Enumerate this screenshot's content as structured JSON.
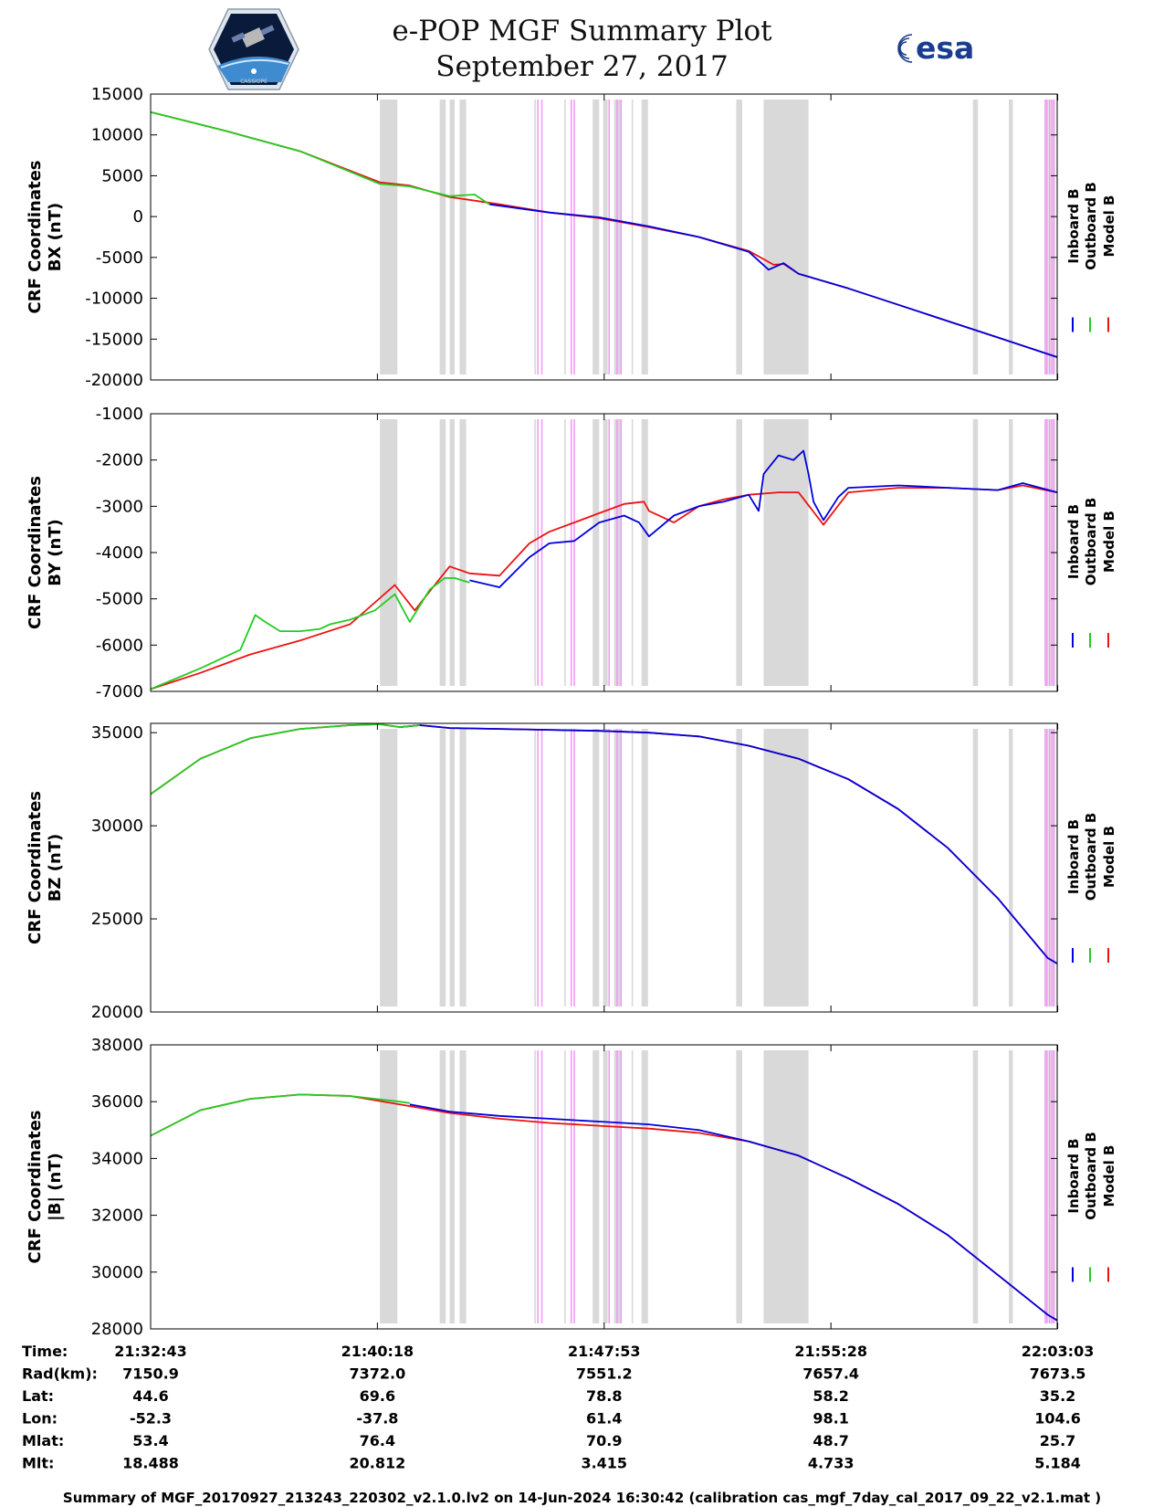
{
  "header": {
    "title": "e-POP MGF Summary Plot",
    "subtitle": "September 27, 2017",
    "logo_left_text": "CASSIOPE",
    "logo_right_text": "esa"
  },
  "colors": {
    "inboard": "#0000dd",
    "outboard": "#22cc22",
    "model": "#ee1111",
    "gap_shade": "#d9d9d9",
    "event_line": "#f29cf2"
  },
  "chart_data": {
    "type": "line",
    "x_range": [
      0,
      1819
    ],
    "x_units": "seconds since 21:32:43",
    "gray_bands": [
      [
        460,
        495
      ],
      [
        580,
        592
      ],
      [
        600,
        610
      ],
      [
        620,
        633
      ],
      [
        770,
        773
      ],
      [
        830,
        833
      ],
      [
        887,
        900
      ],
      [
        908,
        917
      ],
      [
        930,
        945
      ],
      [
        965,
        968
      ],
      [
        985,
        998
      ],
      [
        1175,
        1187
      ],
      [
        1230,
        1320
      ],
      [
        1650,
        1660
      ],
      [
        1722,
        1730
      ],
      [
        1798,
        1802
      ],
      [
        1810,
        1815
      ]
    ],
    "magenta_lines": [
      777,
      785,
      844,
      850,
      920,
      936,
      944,
      1795,
      1798,
      1804,
      1808,
      1812
    ],
    "legend": [
      "Inboard B",
      "Outboard B",
      "Model B"
    ],
    "panels": [
      {
        "id": "bx",
        "ylabel_line1": "CRF Coordinates",
        "ylabel_line2": "BX (nT)",
        "ylim": [
          -20000,
          15000
        ],
        "yticks": [
          "15000",
          "10000",
          "5000",
          "0",
          "-5000",
          "-10000",
          "-15000",
          "-20000"
        ],
        "yticks_values": [
          15000,
          10000,
          5000,
          0,
          -5000,
          -10000,
          -15000,
          -20000
        ],
        "series": [
          {
            "name": "Model B",
            "key": "model",
            "x": [
              0,
              150,
              300,
              460,
              520,
              600,
              700,
              800,
              900,
              1000,
              1100,
              1200,
              1250,
              1270,
              1300,
              1400,
              1500,
              1600,
              1700,
              1819
            ],
            "values": [
              12800,
              10500,
              8000,
              4200,
              3800,
              2400,
              1500,
              500,
              -200,
              -1300,
              -2500,
              -4200,
              -5900,
              -5800,
              -7000,
              -8800,
              -10800,
              -12800,
              -14800,
              -17200
            ]
          },
          {
            "name": "Inboard B",
            "key": "inboard",
            "x": [
              680,
              800,
              900,
              1000,
              1100,
              1200,
              1240,
              1270,
              1300,
              1400,
              1500,
              1600,
              1700,
              1819
            ],
            "values": [
              1500,
              500,
              -100,
              -1200,
              -2500,
              -4300,
              -6500,
              -5700,
              -7000,
              -8800,
              -10800,
              -12800,
              -14800,
              -17200
            ]
          },
          {
            "name": "Outboard B",
            "key": "outboard",
            "x": [
              0,
              150,
              300,
              460,
              520,
              600,
              650,
              680
            ],
            "values": [
              12800,
              10500,
              8000,
              4000,
              3700,
              2500,
              2700,
              1500
            ]
          }
        ]
      },
      {
        "id": "by",
        "ylabel_line1": "CRF Coordinates",
        "ylabel_line2": "BY (nT)",
        "ylim": [
          -7000,
          -1000
        ],
        "yticks": [
          "-1000",
          "-2000",
          "-3000",
          "-4000",
          "-5000",
          "-6000",
          "-7000"
        ],
        "yticks_values": [
          -1000,
          -2000,
          -3000,
          -4000,
          -5000,
          -6000,
          -7000
        ],
        "series": [
          {
            "name": "Model B",
            "key": "model",
            "x": [
              0,
              100,
              200,
              300,
              400,
              490,
              530,
              570,
              600,
              640,
              700,
              760,
              800,
              850,
              900,
              950,
              990,
              1000,
              1050,
              1100,
              1150,
              1200,
              1260,
              1300,
              1350,
              1400,
              1500,
              1600,
              1700,
              1750,
              1819
            ],
            "values": [
              -6950,
              -6600,
              -6200,
              -5900,
              -5550,
              -4700,
              -5250,
              -4700,
              -4300,
              -4450,
              -4500,
              -3800,
              -3550,
              -3350,
              -3150,
              -2950,
              -2900,
              -3100,
              -3350,
              -3000,
              -2850,
              -2750,
              -2700,
              -2700,
              -3400,
              -2700,
              -2600,
              -2600,
              -2650,
              -2550,
              -2700
            ]
          },
          {
            "name": "Inboard B",
            "key": "inboard",
            "x": [
              640,
              700,
              760,
              800,
              850,
              900,
              950,
              980,
              1000,
              1050,
              1100,
              1150,
              1200,
              1220,
              1230,
              1260,
              1290,
              1310,
              1320,
              1330,
              1350,
              1380,
              1400,
              1500,
              1600,
              1700,
              1750,
              1819
            ],
            "values": [
              -4600,
              -4750,
              -4100,
              -3800,
              -3750,
              -3350,
              -3200,
              -3350,
              -3650,
              -3200,
              -3000,
              -2900,
              -2750,
              -3100,
              -2300,
              -1900,
              -2000,
              -1800,
              -2300,
              -2900,
              -3300,
              -2800,
              -2600,
              -2550,
              -2600,
              -2650,
              -2500,
              -2700
            ]
          },
          {
            "name": "Outboard B",
            "key": "outboard",
            "x": [
              0,
              100,
              180,
              210,
              230,
              260,
              300,
              340,
              360,
              400,
              450,
              490,
              520,
              560,
              590,
              610,
              640
            ],
            "values": [
              -6950,
              -6500,
              -6100,
              -5350,
              -5500,
              -5700,
              -5700,
              -5650,
              -5550,
              -5450,
              -5250,
              -4900,
              -5500,
              -4800,
              -4550,
              -4550,
              -4650
            ]
          }
        ]
      },
      {
        "id": "bz",
        "ylabel_line1": "CRF Coordinates",
        "ylabel_line2": "BZ (nT)",
        "ylim": [
          20000,
          35500
        ],
        "yticks": [
          "35000",
          "30000",
          "25000",
          "20000"
        ],
        "yticks_values": [
          35000,
          30000,
          25000,
          20000
        ],
        "series": [
          {
            "name": "Model B",
            "key": "model",
            "x": [
              0,
              100,
              200,
              300,
              400,
              460,
              500,
              540,
              600,
              700,
              800,
              900,
              1000,
              1100,
              1200,
              1300,
              1400,
              1500,
              1600,
              1700,
              1800,
              1819
            ],
            "values": [
              31700,
              33600,
              34700,
              35200,
              35400,
              35450,
              35300,
              35400,
              35250,
              35200,
              35150,
              35100,
              35000,
              34800,
              34300,
              33600,
              32500,
              30900,
              28800,
              26100,
              22900,
              22600
            ]
          },
          {
            "name": "Inboard B",
            "key": "inboard",
            "x": [
              500,
              540,
              600,
              700,
              800,
              900,
              1000,
              1100,
              1200,
              1300,
              1400,
              1500,
              1600,
              1700,
              1800,
              1819
            ],
            "values": [
              35300,
              35400,
              35250,
              35200,
              35150,
              35100,
              35000,
              34800,
              34300,
              33600,
              32500,
              30900,
              28800,
              26100,
              22900,
              22600
            ]
          },
          {
            "name": "Outboard B",
            "key": "outboard",
            "x": [
              0,
              100,
              200,
              300,
              400,
              460,
              500,
              540
            ],
            "values": [
              31700,
              33600,
              34700,
              35200,
              35400,
              35450,
              35300,
              35400
            ]
          }
        ]
      },
      {
        "id": "bt",
        "ylabel_line1": "CRF Coordinates",
        "ylabel_line2": "|B| (nT)",
        "ylim": [
          28000,
          38000
        ],
        "yticks": [
          "38000",
          "36000",
          "34000",
          "32000",
          "30000",
          "28000"
        ],
        "yticks_values": [
          38000,
          36000,
          34000,
          32000,
          30000,
          28000
        ],
        "series": [
          {
            "name": "Model B",
            "key": "model",
            "x": [
              0,
              100,
              200,
              300,
              400,
              500,
              600,
              700,
              800,
              900,
              1000,
              1100,
              1200,
              1300,
              1400,
              1500,
              1600,
              1700,
              1800,
              1819
            ],
            "values": [
              34800,
              35700,
              36100,
              36250,
              36200,
              35900,
              35600,
              35400,
              35250,
              35150,
              35050,
              34900,
              34600,
              34100,
              33300,
              32400,
              31300,
              29900,
              28500,
              28300
            ]
          },
          {
            "name": "Inboard B",
            "key": "inboard",
            "x": [
              520,
              600,
              700,
              800,
              900,
              1000,
              1100,
              1200,
              1300,
              1400,
              1500,
              1600,
              1700,
              1800,
              1819
            ],
            "values": [
              35900,
              35650,
              35500,
              35400,
              35300,
              35200,
              35000,
              34600,
              34100,
              33300,
              32400,
              31300,
              29900,
              28500,
              28300
            ]
          },
          {
            "name": "Outboard B",
            "key": "outboard",
            "x": [
              0,
              100,
              200,
              300,
              400,
              500,
              520
            ],
            "values": [
              34800,
              35700,
              36100,
              36250,
              36200,
              36000,
              35950
            ]
          }
        ]
      }
    ],
    "orbit_table": {
      "row_labels": [
        "Time:",
        "Rad(km):",
        "Lat:",
        "Lon:",
        "Mlat:",
        "Mlt:"
      ],
      "columns": [
        [
          "21:32:43",
          "7150.9",
          "44.6",
          "-52.3",
          "53.4",
          "18.488"
        ],
        [
          "21:40:18",
          "7372.0",
          "69.6",
          "-37.8",
          "76.4",
          "20.812"
        ],
        [
          "21:47:53",
          "7551.2",
          "78.8",
          "61.4",
          "70.9",
          "3.415"
        ],
        [
          "21:55:28",
          "7657.4",
          "58.2",
          "98.1",
          "48.7",
          "4.733"
        ],
        [
          "22:03:03",
          "7673.5",
          "35.2",
          "104.6",
          "25.7",
          "5.184"
        ]
      ]
    }
  },
  "footer": {
    "text": "Summary of MGF_20170927_213243_220302_v2.1.0.lv2 on 14-Jun-2024 16:30:42 (calibration cas_mgf_7day_cal_2017_09_22_v2.1.mat )"
  }
}
